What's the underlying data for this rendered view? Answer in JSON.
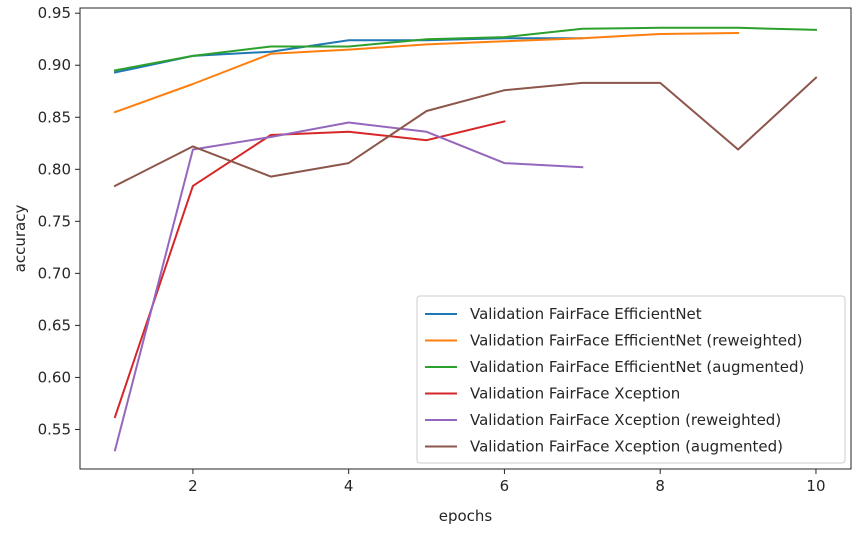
{
  "chart_data": {
    "type": "line",
    "title": "",
    "xlabel": "epochs",
    "ylabel": "accuracy",
    "xlim": [
      0.55,
      10.45
    ],
    "ylim": [
      0.512,
      0.955
    ],
    "xticks": [
      2,
      4,
      6,
      8,
      10
    ],
    "xtick_labels": [
      "2",
      "4",
      "6",
      "8",
      "10"
    ],
    "yticks": [
      0.55,
      0.6,
      0.65,
      0.7,
      0.75,
      0.8,
      0.85,
      0.9,
      0.95
    ],
    "ytick_labels": [
      "0.55",
      "0.60",
      "0.65",
      "0.70",
      "0.75",
      "0.80",
      "0.85",
      "0.90",
      "0.95"
    ],
    "grid": false,
    "legend_position": "lower-right",
    "series": [
      {
        "name": "Validation FairFace EfficientNet",
        "color": "#1f77b4",
        "x": [
          1,
          2,
          3,
          4,
          5,
          6,
          7
        ],
        "y": [
          0.893,
          0.909,
          0.913,
          0.924,
          0.924,
          0.926,
          0.926
        ]
      },
      {
        "name": "Validation FairFace EfficientNet (reweighted)",
        "color": "#ff7f0e",
        "x": [
          1,
          2,
          3,
          4,
          5,
          6,
          7,
          8,
          9
        ],
        "y": [
          0.855,
          0.882,
          0.911,
          0.915,
          0.92,
          0.923,
          0.926,
          0.93,
          0.931
        ]
      },
      {
        "name": "Validation FairFace EfficientNet (augmented)",
        "color": "#2ca02c",
        "x": [
          1,
          2,
          3,
          4,
          5,
          6,
          7,
          8,
          9,
          10
        ],
        "y": [
          0.895,
          0.909,
          0.918,
          0.918,
          0.925,
          0.927,
          0.935,
          0.936,
          0.936,
          0.934
        ]
      },
      {
        "name": "Validation FairFace Xception",
        "color": "#d62728",
        "x": [
          1,
          2,
          3,
          4,
          5,
          6
        ],
        "y": [
          0.562,
          0.784,
          0.833,
          0.836,
          0.828,
          0.846
        ]
      },
      {
        "name": "Validation FairFace Xception (reweighted)",
        "color": "#9467bd",
        "x": [
          1,
          2,
          3,
          4,
          5,
          6,
          7
        ],
        "y": [
          0.53,
          0.819,
          0.831,
          0.845,
          0.836,
          0.806,
          0.802
        ]
      },
      {
        "name": "Validation FairFace Xception (augmented)",
        "color": "#8c564b",
        "x": [
          1,
          2,
          3,
          4,
          5,
          6,
          7,
          8,
          9,
          10
        ],
        "y": [
          0.784,
          0.822,
          0.793,
          0.806,
          0.856,
          0.876,
          0.883,
          0.883,
          0.819,
          0.888
        ]
      }
    ]
  }
}
